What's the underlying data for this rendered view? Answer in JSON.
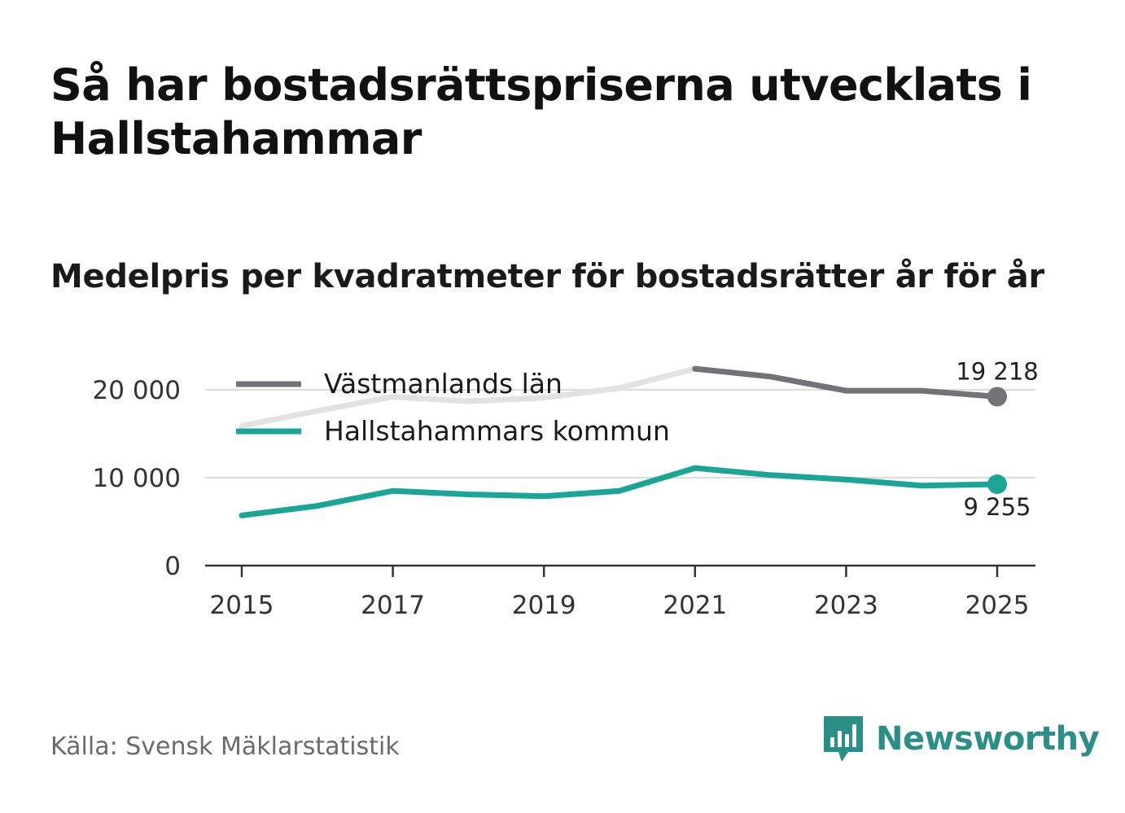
{
  "title": "Så har bostadsrättspriserna utvecklats i Hallstahammar",
  "subtitle": "Medelpris per kvadratmeter för bostadsrätter år för år",
  "source": "Källa: Svensk Mäklarstatistik",
  "brand": "Newsworthy",
  "colors": {
    "lan": "#727278",
    "lan_faded": "#e2e2e2",
    "kommun": "#1aa597",
    "grid": "#dcdcdc",
    "axis": "#333333",
    "brand": "#2a8f87"
  },
  "chart_data": {
    "type": "line",
    "title": "Medelpris per kvadratmeter för bostadsrätter år för år",
    "xlabel": "",
    "ylabel": "",
    "x": [
      2015,
      2016,
      2017,
      2018,
      2019,
      2020,
      2021,
      2022,
      2023,
      2024,
      2025
    ],
    "xticks": [
      "2015",
      "2017",
      "2019",
      "2021",
      "2023",
      "2025"
    ],
    "xlim": [
      2015,
      2025
    ],
    "yticks": [
      0,
      10000,
      20000
    ],
    "ytick_labels": [
      "0",
      "10 000",
      "20 000"
    ],
    "ylim": [
      0,
      22500
    ],
    "grid": true,
    "legend_position": "top-left",
    "series": [
      {
        "name": "Västmanlands län",
        "values": [
          15900,
          17600,
          19200,
          18700,
          19100,
          20200,
          22400,
          21500,
          19900,
          19900,
          19218
        ],
        "end_label": "19 218"
      },
      {
        "name": "Hallstahammars kommun",
        "values": [
          5700,
          6800,
          8500,
          8100,
          7900,
          8500,
          11100,
          10300,
          9800,
          9100,
          9255
        ],
        "end_label": "9 255"
      }
    ]
  }
}
